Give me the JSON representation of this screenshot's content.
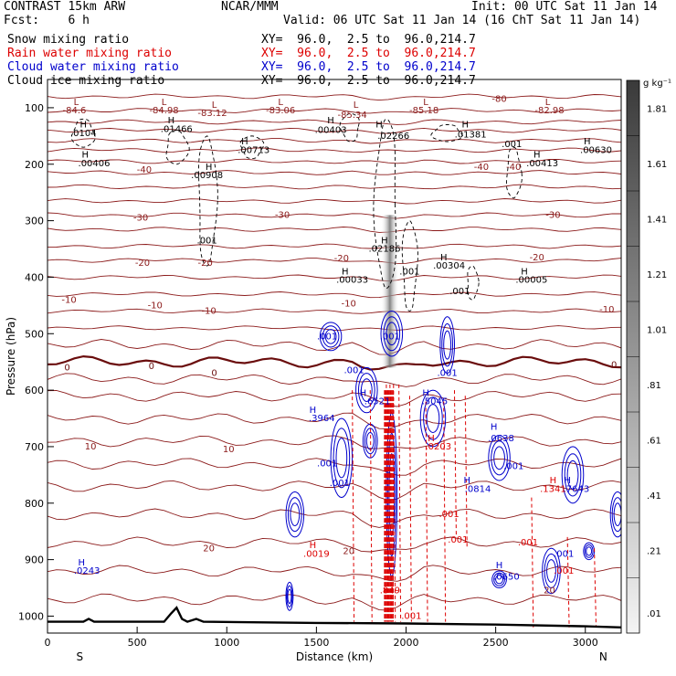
{
  "header": {
    "model": "CONTRAST 15km ARW",
    "fcst": "Fcst:    6 h",
    "center": "NCAR/MMM",
    "init": "Init: 00 UTC Sat 11 Jan 14",
    "valid": "Valid: 06 UTC Sat 11 Jan 14 (16 ChT Sat 11 Jan 14)"
  },
  "legend": [
    {
      "label": "Snow mixing ratio",
      "xy": "XY=  96.0,  2.5 to  96.0,214.7",
      "color": "#000000"
    },
    {
      "label": "Rain water mixing ratio",
      "xy": "XY=  96.0,  2.5 to  96.0,214.7",
      "color": "#dd0000"
    },
    {
      "label": "Cloud water mixing ratio",
      "xy": "XY=  96.0,  2.5 to  96.0,214.7",
      "color": "#0000cc"
    },
    {
      "label": "Cloud ice mixing ratio",
      "xy": "XY=  96.0,  2.5 to  96.0,214.7",
      "color": "#000000"
    }
  ],
  "chart_data": {
    "type": "cross-section",
    "xlabel": "Distance (km)",
    "ylabel": "Pressure (hPa)",
    "xlim": [
      0,
      3200
    ],
    "ylim": [
      1030,
      50
    ],
    "x_ticks": [
      0,
      500,
      1000,
      1500,
      2000,
      2500,
      3000
    ],
    "y_ticks": [
      100,
      200,
      300,
      400,
      500,
      600,
      700,
      800,
      900,
      1000
    ],
    "x_end_labels": {
      "left": "S",
      "right": "N"
    },
    "colorbar": {
      "unit": "g kg⁻¹",
      "ticks": [
        "1.81",
        "1.61",
        "1.41",
        "1.21",
        "1.01",
        ".81",
        ".61",
        ".41",
        ".21",
        ".01"
      ]
    },
    "temperature_contours": [
      {
        "label": "-80",
        "pressure": 90,
        "color": "#8b1a1a"
      },
      {
        "label": "-40",
        "pressure": 210,
        "color": "#8b1a1a"
      },
      {
        "label": "-30",
        "pressure": 300,
        "color": "#8b1a1a"
      },
      {
        "label": "-20",
        "pressure": 375,
        "color": "#8b1a1a"
      },
      {
        "label": "-10",
        "pressure": 450,
        "color": "#8b1a1a"
      },
      {
        "label": "0",
        "pressure": 550,
        "color": "#6a0d0d"
      },
      {
        "label": "10",
        "pressure": 700,
        "color": "#8b1a1a"
      },
      {
        "label": "20",
        "pressure": 880,
        "color": "#8b1a1a"
      }
    ],
    "extrema_labels": [
      {
        "text": "L",
        "x": 160,
        "p": 95,
        "color": "#8b1a1a"
      },
      {
        "text": "-84.6",
        "x": 150,
        "p": 110,
        "color": "#8b1a1a"
      },
      {
        "text": "L",
        "x": 650,
        "p": 95,
        "color": "#8b1a1a"
      },
      {
        "text": "-84.98",
        "x": 650,
        "p": 110,
        "color": "#8b1a1a"
      },
      {
        "text": "L",
        "x": 930,
        "p": 100,
        "color": "#8b1a1a"
      },
      {
        "text": "-83.12",
        "x": 920,
        "p": 115,
        "color": "#8b1a1a"
      },
      {
        "text": "L",
        "x": 1300,
        "p": 95,
        "color": "#8b1a1a"
      },
      {
        "text": "-83.06",
        "x": 1300,
        "p": 110,
        "color": "#8b1a1a"
      },
      {
        "text": "L",
        "x": 1720,
        "p": 100,
        "color": "#8b1a1a"
      },
      {
        "text": "-85.34",
        "x": 1700,
        "p": 118,
        "color": "#8b1a1a"
      },
      {
        "text": "L",
        "x": 2110,
        "p": 95,
        "color": "#8b1a1a"
      },
      {
        "text": "-85.18",
        "x": 2100,
        "p": 110,
        "color": "#8b1a1a"
      },
      {
        "text": "-80",
        "x": 2520,
        "p": 90,
        "color": "#8b1a1a"
      },
      {
        "text": "L",
        "x": 2790,
        "p": 95,
        "color": "#8b1a1a"
      },
      {
        "text": "-82.98",
        "x": 2800,
        "p": 110,
        "color": "#8b1a1a"
      },
      {
        "text": "-40",
        "x": 540,
        "p": 215,
        "color": "#8b1a1a"
      },
      {
        "text": "-40",
        "x": 2420,
        "p": 210,
        "color": "#8b1a1a"
      },
      {
        "text": "-40",
        "x": 2600,
        "p": 210,
        "color": "#8b1a1a"
      },
      {
        "text": "-30",
        "x": 520,
        "p": 300,
        "color": "#8b1a1a"
      },
      {
        "text": "-30",
        "x": 1310,
        "p": 295,
        "color": "#8b1a1a"
      },
      {
        "text": "-30",
        "x": 2820,
        "p": 295,
        "color": "#8b1a1a"
      },
      {
        "text": "-20",
        "x": 530,
        "p": 380,
        "color": "#8b1a1a"
      },
      {
        "text": "-20",
        "x": 880,
        "p": 380,
        "color": "#8b1a1a"
      },
      {
        "text": "-20",
        "x": 1640,
        "p": 372,
        "color": "#8b1a1a"
      },
      {
        "text": "-20",
        "x": 2730,
        "p": 370,
        "color": "#8b1a1a"
      },
      {
        "text": "-10",
        "x": 120,
        "p": 445,
        "color": "#8b1a1a"
      },
      {
        "text": "-10",
        "x": 600,
        "p": 455,
        "color": "#8b1a1a"
      },
      {
        "text": "-10",
        "x": 900,
        "p": 465,
        "color": "#8b1a1a"
      },
      {
        "text": "-10",
        "x": 1680,
        "p": 452,
        "color": "#8b1a1a"
      },
      {
        "text": "-10",
        "x": 3120,
        "p": 462,
        "color": "#8b1a1a"
      },
      {
        "text": "0",
        "x": 110,
        "p": 565,
        "color": "#6a0d0d"
      },
      {
        "text": "0",
        "x": 580,
        "p": 563,
        "color": "#6a0d0d"
      },
      {
        "text": "0",
        "x": 930,
        "p": 575,
        "color": "#6a0d0d"
      },
      {
        "text": "0",
        "x": 3160,
        "p": 560,
        "color": "#6a0d0d"
      },
      {
        "text": "10",
        "x": 240,
        "p": 705,
        "color": "#8b1a1a"
      },
      {
        "text": "10",
        "x": 1010,
        "p": 710,
        "color": "#8b1a1a"
      },
      {
        "text": "20",
        "x": 900,
        "p": 885,
        "color": "#8b1a1a"
      },
      {
        "text": "20",
        "x": 1680,
        "p": 890,
        "color": "#8b1a1a"
      },
      {
        "text": "20",
        "x": 2800,
        "p": 960,
        "color": "#8b1a1a"
      },
      {
        "text": "H",
        "x": 200,
        "p": 135,
        "color": "#000000"
      },
      {
        "text": ".0104",
        "x": 200,
        "p": 150,
        "color": "#000000"
      },
      {
        "text": "H",
        "x": 690,
        "p": 128,
        "color": "#000000"
      },
      {
        "text": ".01466",
        "x": 720,
        "p": 143,
        "color": "#000000"
      },
      {
        "text": "H",
        "x": 1580,
        "p": 128,
        "color": "#000000"
      },
      {
        "text": ".00403",
        "x": 1580,
        "p": 145,
        "color": "#000000"
      },
      {
        "text": "H",
        "x": 1850,
        "p": 135,
        "color": "#000000"
      },
      {
        "text": ".02266",
        "x": 1930,
        "p": 155,
        "color": "#000000"
      },
      {
        "text": "H",
        "x": 2330,
        "p": 135,
        "color": "#000000"
      },
      {
        "text": ".01381",
        "x": 2360,
        "p": 153,
        "color": "#000000"
      },
      {
        "text": ".001",
        "x": 2590,
        "p": 170,
        "color": "#000000"
      },
      {
        "text": "H",
        "x": 3010,
        "p": 165,
        "color": "#000000"
      },
      {
        "text": ".00630",
        "x": 3060,
        "p": 180,
        "color": "#000000"
      },
      {
        "text": "H",
        "x": 1100,
        "p": 165,
        "color": "#000000"
      },
      {
        "text": ".00713",
        "x": 1150,
        "p": 180,
        "color": "#000000"
      },
      {
        "text": "H",
        "x": 210,
        "p": 188,
        "color": "#000000"
      },
      {
        "text": ".00406",
        "x": 260,
        "p": 204,
        "color": "#000000"
      },
      {
        "text": "H",
        "x": 2730,
        "p": 188,
        "color": "#000000"
      },
      {
        "text": ".00413",
        "x": 2760,
        "p": 204,
        "color": "#000000"
      },
      {
        "text": "H",
        "x": 900,
        "p": 210,
        "color": "#000000"
      },
      {
        "text": ".00908",
        "x": 890,
        "p": 225,
        "color": "#000000"
      },
      {
        "text": ".001",
        "x": 890,
        "p": 340,
        "color": "#000000"
      },
      {
        "text": "H",
        "x": 1880,
        "p": 340,
        "color": "#000000"
      },
      {
        "text": ".02186",
        "x": 1880,
        "p": 355,
        "color": "#000000"
      },
      {
        "text": ".001",
        "x": 2020,
        "p": 395,
        "color": "#000000"
      },
      {
        "text": "H",
        "x": 2210,
        "p": 370,
        "color": "#000000"
      },
      {
        "text": ".00304",
        "x": 2240,
        "p": 385,
        "color": "#000000"
      },
      {
        "text": "H",
        "x": 1660,
        "p": 395,
        "color": "#000000"
      },
      {
        "text": ".00033",
        "x": 1700,
        "p": 410,
        "color": "#000000"
      },
      {
        "text": ".001",
        "x": 2300,
        "p": 430,
        "color": "#000000"
      },
      {
        "text": "H",
        "x": 2660,
        "p": 395,
        "color": "#000000"
      },
      {
        "text": ".00005",
        "x": 2700,
        "p": 410,
        "color": "#000000"
      },
      {
        "text": ".001",
        "x": 1560,
        "p": 510,
        "color": "#0000cc"
      },
      {
        "text": ".001",
        "x": 1910,
        "p": 510,
        "color": "#0000cc"
      },
      {
        "text": ".001",
        "x": 1710,
        "p": 570,
        "color": "#0000cc"
      },
      {
        "text": ".001",
        "x": 2230,
        "p": 575,
        "color": "#0000cc"
      },
      {
        "text": "H",
        "x": 1760,
        "p": 610,
        "color": "#0000cc"
      },
      {
        "text": ".6521",
        "x": 1840,
        "p": 625,
        "color": "#0000cc"
      },
      {
        "text": "H",
        "x": 2110,
        "p": 610,
        "color": "#0000cc"
      },
      {
        "text": ".5045",
        "x": 2160,
        "p": 625,
        "color": "#0000cc"
      },
      {
        "text": "H",
        "x": 1480,
        "p": 640,
        "color": "#0000cc"
      },
      {
        "text": ".3964",
        "x": 1530,
        "p": 655,
        "color": "#0000cc"
      },
      {
        "text": "H",
        "x": 2490,
        "p": 670,
        "color": "#0000cc"
      },
      {
        "text": ".0638",
        "x": 2530,
        "p": 690,
        "color": "#0000cc"
      },
      {
        "text": ".001",
        "x": 2600,
        "p": 740,
        "color": "#0000cc"
      },
      {
        "text": ".001",
        "x": 1560,
        "p": 735,
        "color": "#0000cc"
      },
      {
        "text": ".001",
        "x": 1630,
        "p": 770,
        "color": "#0000cc"
      },
      {
        "text": "H",
        "x": 2340,
        "p": 765,
        "color": "#0000cc"
      },
      {
        "text": ".0814",
        "x": 2400,
        "p": 780,
        "color": "#0000cc"
      },
      {
        "text": "H",
        "x": 2900,
        "p": 765,
        "color": "#0000cc"
      },
      {
        "text": ".7643",
        "x": 2950,
        "p": 780,
        "color": "#0000cc"
      },
      {
        "text": "H",
        "x": 2140,
        "p": 690,
        "color": "#dd0000"
      },
      {
        "text": ".0203",
        "x": 2180,
        "p": 705,
        "color": "#dd0000"
      },
      {
        "text": "H",
        "x": 2820,
        "p": 765,
        "color": "#dd0000"
      },
      {
        "text": ".1341",
        "x": 2820,
        "p": 780,
        "color": "#dd0000"
      },
      {
        "text": ".001",
        "x": 2240,
        "p": 825,
        "color": "#dd0000"
      },
      {
        "text": ".001",
        "x": 2290,
        "p": 870,
        "color": "#dd0000"
      },
      {
        "text": ".001",
        "x": 2680,
        "p": 875,
        "color": "#dd0000"
      },
      {
        "text": ".001",
        "x": 2880,
        "p": 925,
        "color": "#dd0000"
      },
      {
        "text": "H",
        "x": 1480,
        "p": 880,
        "color": "#dd0000"
      },
      {
        "text": ".0019",
        "x": 1500,
        "p": 895,
        "color": "#dd0000"
      },
      {
        "text": ".849",
        "x": 1910,
        "p": 960,
        "color": "#dd0000"
      },
      {
        "text": ".001",
        "x": 2030,
        "p": 1005,
        "color": "#dd0000"
      },
      {
        "text": ".001",
        "x": 2880,
        "p": 895,
        "color": "#0000cc"
      },
      {
        "text": "H",
        "x": 190,
        "p": 910,
        "color": "#0000cc"
      },
      {
        "text": ".0243",
        "x": 220,
        "p": 925,
        "color": "#0000cc"
      },
      {
        "text": "H",
        "x": 2520,
        "p": 915,
        "color": "#0000cc"
      },
      {
        "text": ".0650",
        "x": 2560,
        "p": 935,
        "color": "#0000cc"
      }
    ]
  }
}
